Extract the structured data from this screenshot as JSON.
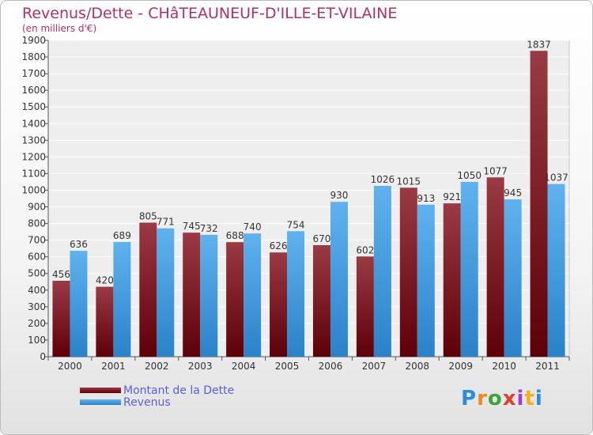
{
  "chart_data": {
    "type": "bar",
    "title": "Revenus/Dette - CHâTEAUNEUF-D'ILLE-ET-VILAINE",
    "subtitle": "(en milliers d'€)",
    "categories": [
      "2000",
      "2001",
      "2002",
      "2003",
      "2004",
      "2005",
      "2006",
      "2007",
      "2008",
      "2009",
      "2010",
      "2011"
    ],
    "series": [
      {
        "name": "Montant de la Dette",
        "color": "#7a0f1a",
        "values": [
          456,
          420,
          805,
          745,
          688,
          626,
          670,
          602,
          1015,
          921,
          1077,
          1837
        ]
      },
      {
        "name": "Revenus",
        "color": "#3d9be0",
        "values": [
          636,
          689,
          771,
          732,
          740,
          754,
          930,
          1026,
          913,
          1050,
          945,
          1037
        ]
      }
    ],
    "ylim": [
      0,
      1900
    ],
    "yticks": [
      0,
      100,
      200,
      300,
      400,
      500,
      600,
      700,
      800,
      900,
      1000,
      1100,
      1200,
      1300,
      1400,
      1500,
      1600,
      1700,
      1800,
      1900
    ],
    "grid": true,
    "legend_position": "bottom-left"
  },
  "logo": {
    "letters": [
      "P",
      "r",
      "o",
      "x",
      "i",
      "t",
      "i"
    ],
    "colors": [
      "#2a8fd8",
      "#f08a1e",
      "#3aa53a",
      "#e23c2c",
      "#9a3fd0",
      "#f0b21e",
      "#2a8fd8"
    ]
  }
}
